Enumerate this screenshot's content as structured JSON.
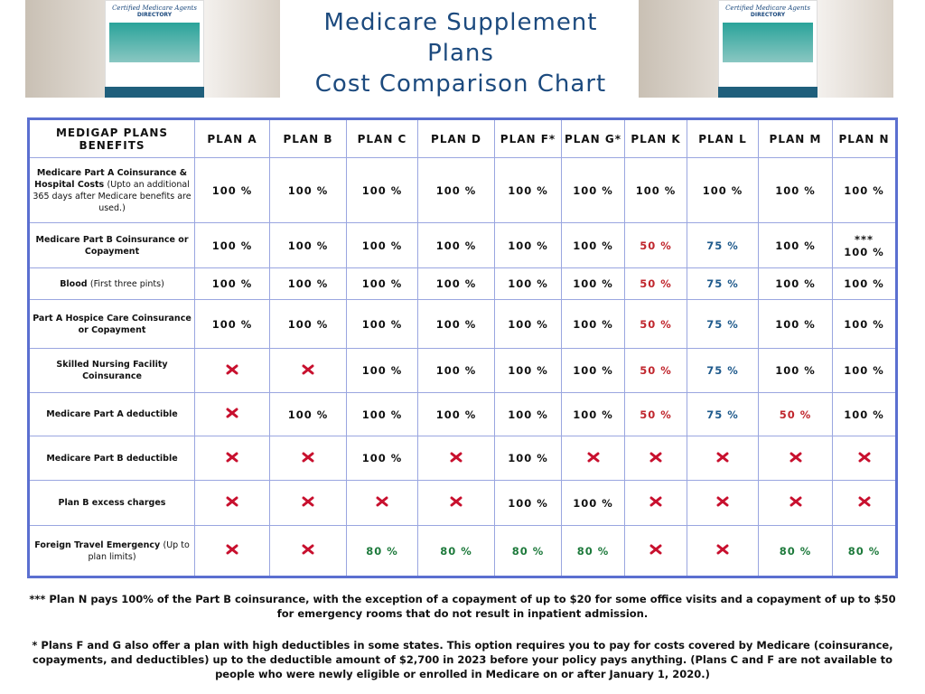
{
  "header": {
    "title_lines": [
      "Medicare Supplement",
      "Plans",
      "Cost Comparison Chart"
    ],
    "banner": [
      "Certified Medicare Agents",
      "DIRECTORY"
    ]
  },
  "table": {
    "corner": "MEDIGAP PLANS BENEFITS",
    "plans": [
      "PLAN A",
      "PLAN B",
      "PLAN C",
      "PLAN D",
      "PLAN F*",
      "PLAN G*",
      "PLAN K",
      "PLAN L",
      "PLAN M",
      "PLAN N"
    ],
    "rows": [
      {
        "label": "Medicare Part A Coinsurance & Hospital Costs",
        "note": "(Upto an additional 365 days after Medicare benefits are used.)",
        "cells": [
          "100 %",
          "100 %",
          "100 %",
          "100 %",
          "100 %",
          "100 %",
          "100 %",
          "100 %",
          "100 %",
          "100 %"
        ]
      },
      {
        "label": "Medicare Part B Coinsurance or Copayment",
        "cells": [
          "100 %",
          "100 %",
          "100 %",
          "100 %",
          "100 %",
          "100 %",
          {
            "text": "50 %",
            "color": "#c0262d"
          },
          {
            "text": "75 %",
            "color": "#1f5a8c"
          },
          "100 %",
          "***\n100 %"
        ]
      },
      {
        "label": "Blood",
        "note": "(First three pints)",
        "cells": [
          "100 %",
          "100 %",
          "100 %",
          "100 %",
          "100 %",
          "100 %",
          {
            "text": "50 %",
            "color": "#c0262d"
          },
          {
            "text": "75 %",
            "color": "#1f5a8c"
          },
          "100 %",
          "100 %"
        ]
      },
      {
        "label": "Part A Hospice Care Coinsurance or Copayment",
        "cells": [
          "100 %",
          "100 %",
          "100 %",
          "100 %",
          "100 %",
          "100 %",
          {
            "text": "50 %",
            "color": "#c0262d"
          },
          {
            "text": "75 %",
            "color": "#1f5a8c"
          },
          "100 %",
          "100 %"
        ]
      },
      {
        "label": "Skilled Nursing Facility Coinsurance",
        "cells": [
          null,
          null,
          "100 %",
          "100 %",
          "100 %",
          "100 %",
          {
            "text": "50 %",
            "color": "#c0262d"
          },
          {
            "text": "75 %",
            "color": "#1f5a8c"
          },
          "100 %",
          "100 %"
        ]
      },
      {
        "label": "Medicare Part A deductible",
        "cells": [
          null,
          "100 %",
          "100 %",
          "100 %",
          "100 %",
          "100 %",
          {
            "text": "50 %",
            "color": "#c0262d"
          },
          {
            "text": "75 %",
            "color": "#1f5a8c"
          },
          {
            "text": "50 %",
            "color": "#c0262d"
          },
          "100 %"
        ]
      },
      {
        "label": "Medicare Part B deductible",
        "cells": [
          null,
          null,
          "100 %",
          null,
          "100 %",
          null,
          null,
          null,
          null,
          null
        ]
      },
      {
        "label": "Plan B excess charges",
        "cells": [
          null,
          null,
          null,
          null,
          "100 %",
          "100 %",
          null,
          null,
          null,
          null
        ]
      },
      {
        "label": "Foreign Travel Emergency",
        "note": "(Up to plan limits)",
        "cells": [
          null,
          null,
          {
            "text": "80 %",
            "color": "#1e7a3c"
          },
          {
            "text": "80 %",
            "color": "#1e7a3c"
          },
          {
            "text": "80 %",
            "color": "#1e7a3c"
          },
          {
            "text": "80 %",
            "color": "#1e7a3c"
          },
          null,
          null,
          {
            "text": "80 %",
            "color": "#1e7a3c"
          },
          {
            "text": "80 %",
            "color": "#1e7a3c"
          }
        ]
      }
    ]
  },
  "footnotes": [
    "*** Plan N pays 100% of the Part B coinsurance, with the exception of a copayment of up to $20 for some office visits and a copayment of up to $50 for emergency rooms that do not result in inpatient admission.",
    "* Plans F and G also offer a plan with high deductibles in some states. This option requires you to pay for costs covered by Medicare (coinsurance, copayments, and deductibles) up to the deductible amount of $2,700 in 2023 before your policy pays anything. (Plans C and F are not available to people who were newly eligible or enrolled in Medicare on or after January 1, 2020.)"
  ]
}
